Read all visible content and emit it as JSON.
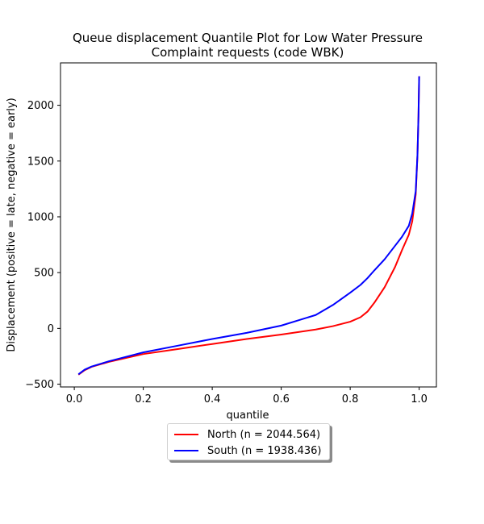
{
  "chart_data": {
    "type": "line",
    "title_lines": [
      "Queue displacement Quantile Plot for Low Water Pressure",
      "Complaint  requests (code WBK)"
    ],
    "xlabel": "quantile",
    "ylabel": "Displacement (positive = late, negative = early)",
    "xlim": [
      -0.04,
      1.05
    ],
    "ylim": [
      -525,
      2380
    ],
    "xticks": [
      0.0,
      0.2,
      0.4,
      0.6,
      0.8,
      1.0
    ],
    "xtick_labels": [
      "0.0",
      "0.2",
      "0.4",
      "0.6",
      "0.8",
      "1.0"
    ],
    "yticks": [
      -500,
      0,
      500,
      1000,
      1500,
      2000
    ],
    "ytick_labels": [
      "−500",
      "0",
      "500",
      "1000",
      "1500",
      "2000"
    ],
    "grid": false,
    "legend_position": "below plot, centered",
    "series": [
      {
        "name": "North (n = 2044.564)",
        "color": "#ff0000",
        "x": [
          0.012,
          0.03,
          0.05,
          0.1,
          0.2,
          0.3,
          0.4,
          0.5,
          0.6,
          0.7,
          0.75,
          0.8,
          0.83,
          0.85,
          0.87,
          0.9,
          0.93,
          0.95,
          0.97,
          0.98,
          0.99,
          0.995,
          0.998,
          1.0
        ],
        "y": [
          -415,
          -375,
          -345,
          -300,
          -230,
          -185,
          -140,
          -95,
          -55,
          -10,
          20,
          60,
          100,
          150,
          230,
          370,
          550,
          700,
          840,
          960,
          1200,
          1550,
          1900,
          2260
        ]
      },
      {
        "name": "South (n = 1938.436)",
        "color": "#0000ff",
        "x": [
          0.012,
          0.03,
          0.05,
          0.1,
          0.2,
          0.3,
          0.4,
          0.5,
          0.6,
          0.7,
          0.75,
          0.8,
          0.83,
          0.85,
          0.87,
          0.9,
          0.93,
          0.95,
          0.97,
          0.98,
          0.99,
          0.995,
          0.998,
          1.0
        ],
        "y": [
          -412,
          -370,
          -342,
          -295,
          -215,
          -155,
          -95,
          -40,
          25,
          120,
          210,
          320,
          390,
          450,
          520,
          620,
          740,
          820,
          920,
          1030,
          1230,
          1550,
          1900,
          2260
        ]
      }
    ]
  }
}
